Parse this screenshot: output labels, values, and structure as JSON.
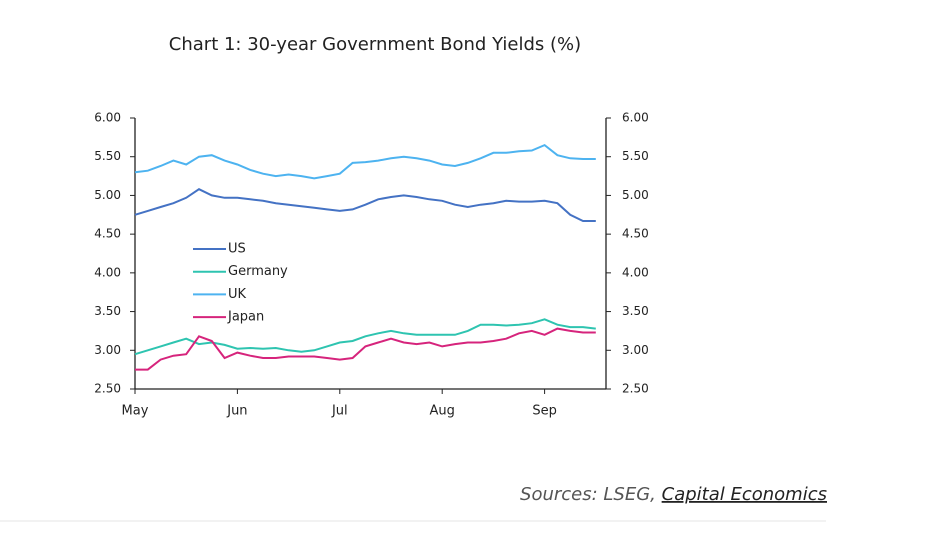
{
  "chart_data": {
    "type": "line",
    "title": "Chart 1: 30-year Government Bond Yields (%)",
    "categories": [
      "May",
      null,
      null,
      null,
      null,
      null,
      null,
      null,
      "Jun",
      null,
      null,
      null,
      null,
      null,
      null,
      null,
      "Jul",
      null,
      null,
      null,
      null,
      null,
      null,
      null,
      "Aug",
      null,
      null,
      null,
      null,
      null,
      null,
      null,
      "Sep",
      null,
      null,
      null,
      null
    ],
    "series": [
      {
        "name": "US",
        "color": "#4472c4",
        "values": [
          4.75,
          4.8,
          4.85,
          4.9,
          4.97,
          5.08,
          5.0,
          4.97,
          4.97,
          4.95,
          4.93,
          4.9,
          4.88,
          4.86,
          4.84,
          4.82,
          4.8,
          4.82,
          4.88,
          4.95,
          4.98,
          5.0,
          4.98,
          4.95,
          4.93,
          4.88,
          4.85,
          4.88,
          4.9,
          4.93,
          4.92,
          4.92,
          4.93,
          4.9,
          4.75,
          4.67,
          4.67
        ]
      },
      {
        "name": "Germany",
        "color": "#2ec4b0",
        "values": [
          2.95,
          3.0,
          3.05,
          3.1,
          3.15,
          3.08,
          3.1,
          3.07,
          3.02,
          3.03,
          3.02,
          3.03,
          3.0,
          2.98,
          3.0,
          3.05,
          3.1,
          3.12,
          3.18,
          3.22,
          3.25,
          3.22,
          3.2,
          3.2,
          3.2,
          3.2,
          3.25,
          3.33,
          3.33,
          3.32,
          3.33,
          3.35,
          3.4,
          3.33,
          3.3,
          3.3,
          3.28
        ]
      },
      {
        "name": "UK",
        "color": "#4db3f0",
        "values": [
          5.3,
          5.32,
          5.38,
          5.45,
          5.4,
          5.5,
          5.52,
          5.45,
          5.4,
          5.33,
          5.28,
          5.25,
          5.27,
          5.25,
          5.22,
          5.25,
          5.28,
          5.42,
          5.43,
          5.45,
          5.48,
          5.5,
          5.48,
          5.45,
          5.4,
          5.38,
          5.42,
          5.48,
          5.55,
          5.55,
          5.57,
          5.58,
          5.65,
          5.52,
          5.48,
          5.47,
          5.47
        ]
      },
      {
        "name": "Japan",
        "color": "#d6247c",
        "values": [
          2.75,
          2.75,
          2.88,
          2.93,
          2.95,
          3.18,
          3.12,
          2.9,
          2.97,
          2.93,
          2.9,
          2.9,
          2.92,
          2.92,
          2.92,
          2.9,
          2.88,
          2.9,
          3.05,
          3.1,
          3.15,
          3.1,
          3.08,
          3.1,
          3.05,
          3.08,
          3.1,
          3.1,
          3.12,
          3.15,
          3.22,
          3.25,
          3.2,
          3.28,
          3.25,
          3.23,
          3.23
        ]
      }
    ],
    "ylim": [
      2.5,
      6
    ],
    "yticks": [
      {
        "value": 2.5,
        "label": "2.50"
      },
      {
        "value": 3,
        "label": "3.00"
      },
      {
        "value": 3.5,
        "label": "3.50"
      },
      {
        "value": 4,
        "label": "4.00"
      },
      {
        "value": 4.5,
        "label": "4.50"
      },
      {
        "value": 5,
        "label": "5.00"
      },
      {
        "value": 5.5,
        "label": "5.50"
      },
      {
        "value": 6,
        "label": "6.00"
      }
    ],
    "y2lim": [
      2.5,
      6
    ],
    "y2ticks": [
      {
        "value": 2.5,
        "label": "2.50"
      },
      {
        "value": 3,
        "label": "3.00"
      },
      {
        "value": 3.5,
        "label": "3.50"
      },
      {
        "value": 4,
        "label": "4.00"
      },
      {
        "value": 4.5,
        "label": "4.50"
      },
      {
        "value": 5,
        "label": "5.00"
      },
      {
        "value": 5.5,
        "label": "5.50"
      },
      {
        "value": 6,
        "label": "6.00"
      }
    ],
    "grid": false,
    "legend": "center-left"
  },
  "source": {
    "prefix": "Sources: LSEG,",
    "link": "Capital Economics"
  }
}
